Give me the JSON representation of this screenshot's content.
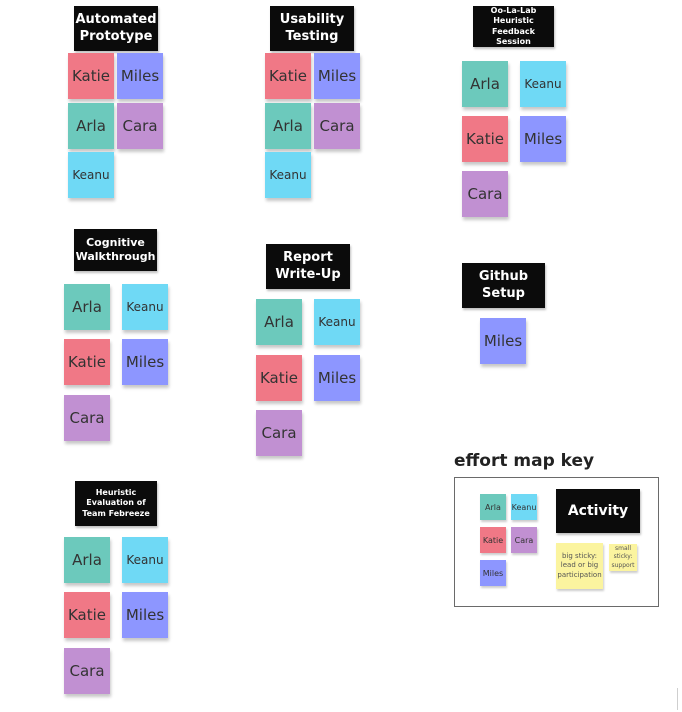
{
  "groups": [
    {
      "label": "Automated Prototype",
      "stickies": [
        {
          "name": "Katie",
          "color": "pink"
        },
        {
          "name": "Miles",
          "color": "blue"
        },
        {
          "name": "Arla",
          "color": "teal"
        },
        {
          "name": "Cara",
          "color": "purple"
        },
        {
          "name": "Keanu",
          "color": "cyan"
        }
      ]
    },
    {
      "label": "Usability Testing",
      "stickies": [
        {
          "name": "Katie",
          "color": "pink"
        },
        {
          "name": "Miles",
          "color": "blue"
        },
        {
          "name": "Arla",
          "color": "teal"
        },
        {
          "name": "Cara",
          "color": "purple"
        },
        {
          "name": "Keanu",
          "color": "cyan"
        }
      ]
    },
    {
      "label": "Oo-La-Lab Heuristic Feedback Session",
      "stickies": [
        {
          "name": "Arla",
          "color": "teal"
        },
        {
          "name": "Keanu",
          "color": "cyan"
        },
        {
          "name": "Katie",
          "color": "pink"
        },
        {
          "name": "Miles",
          "color": "blue"
        },
        {
          "name": "Cara",
          "color": "purple"
        }
      ]
    },
    {
      "label": "Cognitive Walkthrough",
      "stickies": [
        {
          "name": "Arla",
          "color": "teal"
        },
        {
          "name": "Keanu",
          "color": "cyan"
        },
        {
          "name": "Katie",
          "color": "pink"
        },
        {
          "name": "Miles",
          "color": "blue"
        },
        {
          "name": "Cara",
          "color": "purple"
        }
      ]
    },
    {
      "label": "Report Write-Up",
      "stickies": [
        {
          "name": "Arla",
          "color": "teal"
        },
        {
          "name": "Keanu",
          "color": "cyan"
        },
        {
          "name": "Katie",
          "color": "pink"
        },
        {
          "name": "Miles",
          "color": "blue"
        },
        {
          "name": "Cara",
          "color": "purple"
        }
      ]
    },
    {
      "label": "Github Setup",
      "stickies": [
        {
          "name": "Miles",
          "color": "blue"
        }
      ]
    },
    {
      "label": "Heuristic Evaluation of Team Febreeze",
      "stickies": [
        {
          "name": "Arla",
          "color": "teal"
        },
        {
          "name": "Keanu",
          "color": "cyan"
        },
        {
          "name": "Katie",
          "color": "pink"
        },
        {
          "name": "Miles",
          "color": "blue"
        },
        {
          "name": "Cara",
          "color": "purple"
        }
      ]
    }
  ],
  "key": {
    "title": "effort map key",
    "activity_label": "Activity",
    "big_sticky_note": "big sticky: lead or big participation",
    "small_sticky_note": "small sticky: support",
    "stickies": [
      {
        "name": "Arla",
        "color": "teal"
      },
      {
        "name": "Keanu",
        "color": "cyan"
      },
      {
        "name": "Katie",
        "color": "pink"
      },
      {
        "name": "Cara",
        "color": "purple"
      },
      {
        "name": "Miles",
        "color": "blue"
      }
    ]
  },
  "colors": {
    "pink": "#f07886",
    "blue": "#8d96ff",
    "teal": "#6cc9bc",
    "purple": "#c190d2",
    "cyan": "#6fd9f5",
    "yellow": "#fbf49f",
    "label_bg": "#0b0b0b"
  }
}
